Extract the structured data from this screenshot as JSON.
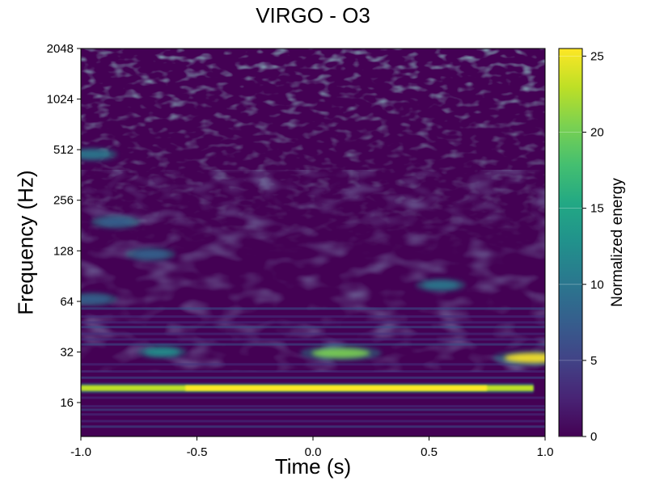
{
  "chart_data": {
    "type": "heatmap",
    "title": "VIRGO - O3",
    "xlabel": "Time (s)",
    "ylabel": "Frequency (Hz)",
    "xlim": [
      -1.0,
      1.0
    ],
    "ylim": [
      10,
      2048
    ],
    "yscale": "log2",
    "x_ticks": [
      "-1.0",
      "-0.5",
      "0.0",
      "0.5",
      "1.0"
    ],
    "x_tick_values": [
      -1.0,
      -0.5,
      0.0,
      0.5,
      1.0
    ],
    "y_ticks": [
      "16",
      "32",
      "64",
      "128",
      "256",
      "512",
      "1024",
      "2048"
    ],
    "y_tick_values": [
      16,
      32,
      64,
      128,
      256,
      512,
      1024,
      2048
    ],
    "colorbar": {
      "label": "Normalized energy",
      "range": [
        0,
        25.5
      ],
      "ticks": [
        "0",
        "5",
        "10",
        "15",
        "20",
        "25"
      ],
      "tick_values": [
        0,
        5,
        10,
        15,
        20,
        25
      ],
      "colormap": "viridis"
    },
    "features": [
      {
        "kind": "band",
        "t_start": -1.0,
        "t_end": 0.95,
        "freq": 19.5,
        "energy": 24
      },
      {
        "kind": "blob",
        "t": 0.12,
        "freq": 31.5,
        "energy": 20
      },
      {
        "kind": "blob",
        "t": -0.65,
        "freq": 32,
        "energy": 12
      },
      {
        "kind": "blob",
        "t": 0.95,
        "freq": 29.5,
        "energy": 25
      },
      {
        "kind": "blob",
        "t": 0.55,
        "freq": 80,
        "energy": 9
      },
      {
        "kind": "blob",
        "t": -0.95,
        "freq": 66,
        "energy": 8
      },
      {
        "kind": "blob",
        "t": -0.7,
        "freq": 122,
        "energy": 8
      },
      {
        "kind": "blob",
        "t": -0.85,
        "freq": 190,
        "energy": 8
      },
      {
        "kind": "blob",
        "t": -0.95,
        "freq": 480,
        "energy": 10
      }
    ]
  }
}
